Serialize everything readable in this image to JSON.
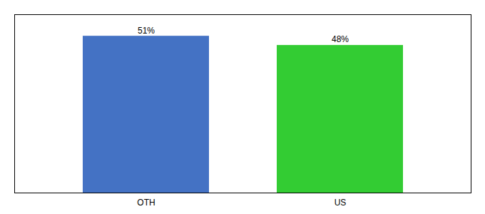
{
  "chart_data": {
    "type": "bar",
    "categories": [
      "OTH",
      "US"
    ],
    "values": [
      51,
      48
    ],
    "value_labels": [
      "51%",
      "48%"
    ],
    "colors": [
      "#4472C4",
      "#33CC33"
    ],
    "ylim": [
      0,
      58
    ],
    "data_labels": true,
    "tick_labels": "x"
  }
}
